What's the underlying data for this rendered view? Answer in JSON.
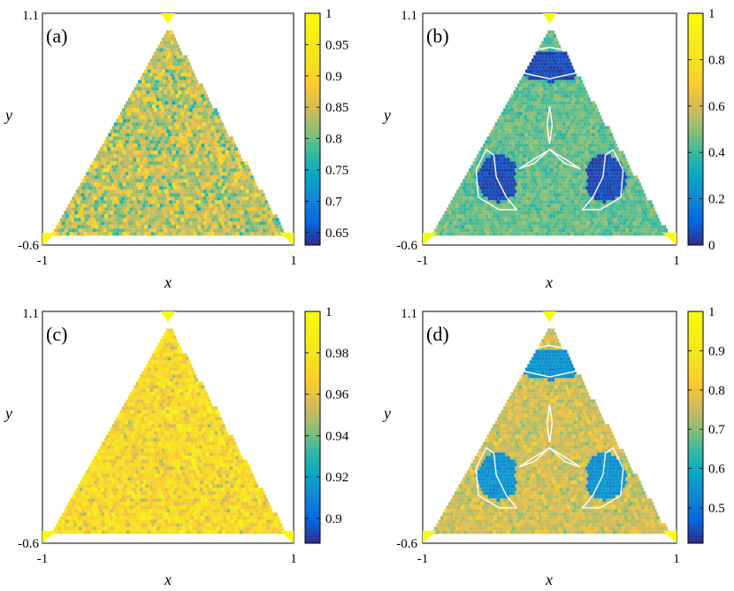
{
  "figure": {
    "panels": [
      "(a)",
      "(b)",
      "(c)",
      "(d)"
    ]
  },
  "chart_data": [
    {
      "type": "heatmap",
      "panel_label": "(a)",
      "xlabel": "x",
      "ylabel": "y",
      "xlim": [
        -1,
        1
      ],
      "ylim": [
        -0.6,
        1.1
      ],
      "x_ticks": [
        "-1",
        "1"
      ],
      "y_ticks": [
        "-0.6",
        "1.1"
      ],
      "colorbar": {
        "min": 0.63,
        "max": 1,
        "ticks": [
          "0.65",
          "0.7",
          "0.75",
          "0.8",
          "0.85",
          "0.9",
          "0.95",
          "1"
        ],
        "tick_values": [
          0.65,
          0.7,
          0.75,
          0.8,
          0.85,
          0.9,
          0.95,
          1
        ]
      },
      "region": "triangle",
      "pattern": "noise",
      "noise_mean": 0.84,
      "noise_spread": 0.11,
      "structure_level": null,
      "corner_markers": [
        [
          0,
          1.1
        ],
        [
          -1,
          -0.6
        ],
        [
          1,
          -0.6
        ]
      ],
      "corner_marker_color": "#f9fb0e"
    },
    {
      "type": "heatmap",
      "panel_label": "(b)",
      "xlabel": "x",
      "ylabel": "y",
      "xlim": [
        -1,
        1
      ],
      "ylim": [
        -0.6,
        1.1
      ],
      "x_ticks": [
        "-1",
        "1"
      ],
      "y_ticks": [
        "-0.6",
        "1.1"
      ],
      "colorbar": {
        "min": 0,
        "max": 1,
        "ticks": [
          "0",
          "0.2",
          "0.4",
          "0.6",
          "0.8",
          "1"
        ],
        "tick_values": [
          0,
          0.2,
          0.4,
          0.6,
          0.8,
          1
        ]
      },
      "region": "triangle",
      "pattern": "islands",
      "noise_mean": 0.45,
      "noise_spread": 0.12,
      "structure_level": 0.05,
      "corner_markers": [
        [
          0,
          1.1
        ],
        [
          -1,
          -0.6
        ],
        [
          1,
          -0.6
        ]
      ],
      "corner_marker_color": "#f9fb0e"
    },
    {
      "type": "heatmap",
      "panel_label": "(c)",
      "xlabel": "x",
      "ylabel": "y",
      "xlim": [
        -1,
        1
      ],
      "ylim": [
        -0.6,
        1.1
      ],
      "x_ticks": [
        "-1",
        "1"
      ],
      "y_ticks": [
        "-0.6",
        "1.1"
      ],
      "colorbar": {
        "min": 0.888,
        "max": 1,
        "ticks": [
          "0.9",
          "0.92",
          "0.94",
          "0.96",
          "0.98",
          "1"
        ],
        "tick_values": [
          0.9,
          0.92,
          0.94,
          0.96,
          0.98,
          1
        ]
      },
      "region": "triangle",
      "pattern": "noise",
      "noise_mean": 0.972,
      "noise_spread": 0.03,
      "structure_level": null,
      "corner_markers": [
        [
          0,
          1.1
        ],
        [
          -1,
          -0.6
        ],
        [
          1,
          -0.6
        ]
      ],
      "corner_marker_color": "#f9fb0e"
    },
    {
      "type": "heatmap",
      "panel_label": "(d)",
      "xlabel": "x",
      "ylabel": "y",
      "xlim": [
        -1,
        1
      ],
      "ylim": [
        -0.6,
        1.1
      ],
      "x_ticks": [
        "-1",
        "1"
      ],
      "y_ticks": [
        "-0.6",
        "1.1"
      ],
      "colorbar": {
        "min": 0.41,
        "max": 1,
        "ticks": [
          "0.5",
          "0.6",
          "0.7",
          "0.8",
          "0.9",
          "1"
        ],
        "tick_values": [
          0.5,
          0.6,
          0.7,
          0.8,
          0.9,
          1
        ]
      },
      "region": "triangle",
      "pattern": "islands",
      "noise_mean": 0.76,
      "noise_spread": 0.09,
      "structure_level": 0.55,
      "corner_markers": [
        [
          0,
          1.1
        ],
        [
          -1,
          -0.6
        ],
        [
          1,
          -0.6
        ]
      ],
      "corner_marker_color": "#f9fb0e"
    }
  ]
}
